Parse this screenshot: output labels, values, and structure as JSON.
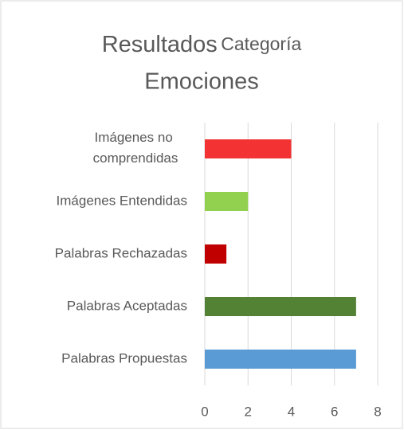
{
  "chart_data": {
    "type": "barh",
    "title": [
      "Resultados",
      "Categoría",
      "Emociones"
    ],
    "categories": [
      "Imágenes no comprendidas",
      "Imágenes Entendidas",
      "Palabras Rechazadas",
      "Palabras Aceptadas",
      "Palabras Propuestas"
    ],
    "values": [
      4,
      2,
      1,
      7,
      7
    ],
    "colors": [
      "#f33333",
      "#92d050",
      "#c00000",
      "#548235",
      "#5b9bd5"
    ],
    "xlim": [
      0,
      8
    ],
    "xticks": [
      0,
      2,
      4,
      6,
      8
    ],
    "grid": true
  }
}
